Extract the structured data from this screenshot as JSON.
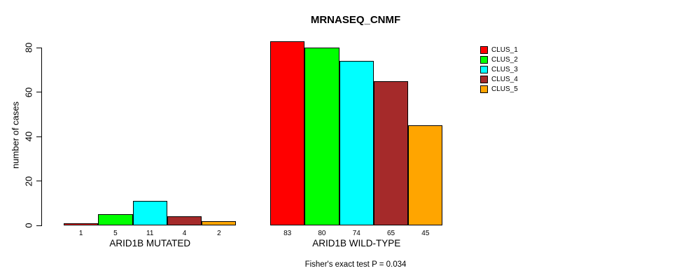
{
  "title": "MRNASEQ_CNMF",
  "footer": "Fisher's exact test P = 0.034",
  "chart_data": {
    "type": "bar",
    "title": "MRNASEQ_CNMF",
    "xlabel": "",
    "ylabel": "number of cases",
    "ylim": [
      0,
      83
    ],
    "yticks": [
      0,
      20,
      40,
      60,
      80
    ],
    "grid": false,
    "legend_position": "top-right",
    "bar_value_labels": true,
    "categories": [
      "ARID1B MUTATED",
      "ARID1B WILD-TYPE"
    ],
    "series": [
      {
        "name": "CLUS_1",
        "color": "#FF0000",
        "values": [
          1,
          83
        ]
      },
      {
        "name": "CLUS_2",
        "color": "#00FF00",
        "values": [
          5,
          80
        ]
      },
      {
        "name": "CLUS_3",
        "color": "#00FFFF",
        "values": [
          11,
          74
        ]
      },
      {
        "name": "CLUS_4",
        "color": "#A52A2A",
        "values": [
          4,
          65
        ]
      },
      {
        "name": "CLUS_5",
        "color": "#FFA500",
        "values": [
          2,
          45
        ]
      }
    ],
    "annotation": "Fisher's exact test P = 0.034"
  }
}
